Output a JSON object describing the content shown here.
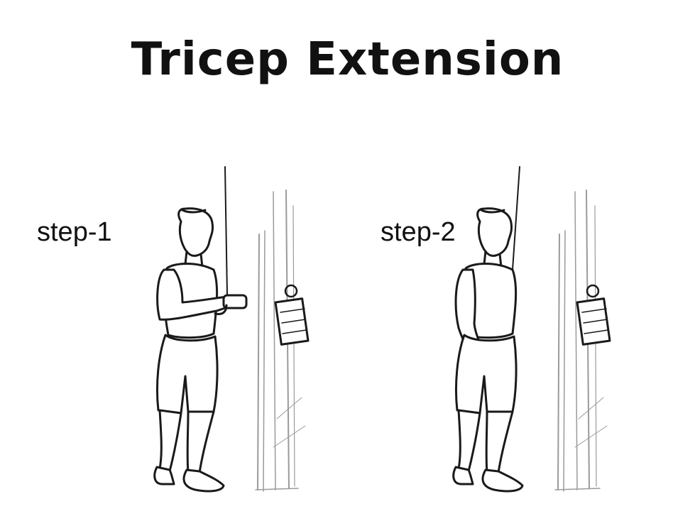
{
  "title": "Tricep Extension",
  "steps": [
    {
      "label": "step-1"
    },
    {
      "label": "step-2"
    }
  ]
}
